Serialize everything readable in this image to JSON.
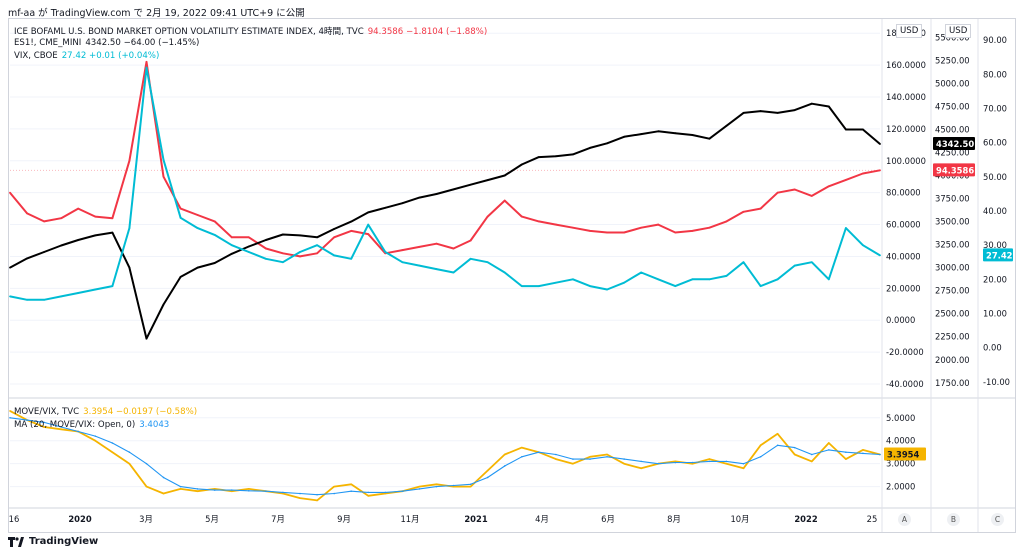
{
  "header": {
    "byline": "mf-aa が TradingView.com で 2月 19, 2022 09:41 UTC+9 に公開"
  },
  "legend_top": [
    {
      "name": "ICE BOFAML U.S. BOND MARKET OPTION VOLATILITY ESTIMATE INDEX, 4時間, TVC",
      "value": "94.3586 −1.8104 (−1.88%)",
      "color": "#f23645"
    },
    {
      "name": "ES1!, CME_MINI",
      "value": "4342.50 −64.00 (−1.45%)",
      "color": "#131722"
    },
    {
      "name": "VIX, CBOE",
      "value": "27.42 +0.01 (+0.04%)",
      "color": "#00bcd4"
    }
  ],
  "legend_bottom": [
    {
      "name": "MOVE/VIX, TVC",
      "value": "3.3954 −0.0197 (−0.58%)",
      "color": "#f5b400"
    },
    {
      "name": "MA (20, MOVE/VIX: Open, 0)",
      "value": "3.4043",
      "color": "#2196f3"
    }
  ],
  "axes": {
    "unit": "USD"
  },
  "footer": {
    "brand": "TradingView",
    "buttons": [
      "A",
      "B",
      "C"
    ]
  },
  "chart_data": [
    {
      "type": "line",
      "title": "",
      "x_ticks": [
        "16",
        "2020",
        "3月",
        "5月",
        "7月",
        "9月",
        "11月",
        "2021",
        "4月",
        "6月",
        "8月",
        "10月",
        "2022",
        "25"
      ],
      "y_axes": [
        {
          "name": "MOVE",
          "ticks": [
            -40,
            -20,
            0,
            20,
            40,
            60,
            80,
            100,
            120,
            140,
            160,
            180
          ],
          "ylim": [
            -45,
            182
          ]
        },
        {
          "name": "ES1!",
          "ticks": [
            1750,
            2000,
            2250,
            2500,
            2750,
            3000,
            3250,
            3500,
            3750,
            4000,
            4250,
            4500,
            4750,
            5000,
            5250,
            5500
          ],
          "ylim": [
            1650,
            5580
          ]
        },
        {
          "name": "VIX",
          "ticks": [
            -10,
            0,
            10,
            20,
            30,
            40,
            50,
            60,
            70,
            80,
            90
          ],
          "ylim": [
            -13,
            93
          ]
        }
      ],
      "last_labels": [
        {
          "series": "ES1!",
          "text": "4342.50",
          "color": "#000000"
        },
        {
          "series": "MOVE",
          "text": "94.3586",
          "color": "#f23645"
        },
        {
          "series": "VIX",
          "text": "27.42",
          "color": "#00bcd4"
        }
      ],
      "series": [
        {
          "name": "MOVE",
          "color": "#f23645",
          "axis": 0,
          "values": [
            80,
            67,
            62,
            64,
            70,
            65,
            64,
            100,
            162,
            90,
            70,
            66,
            62,
            52,
            52,
            45,
            42,
            40,
            42,
            52,
            56,
            54,
            42,
            44,
            46,
            48,
            45,
            50,
            65,
            75,
            65,
            62,
            60,
            58,
            56,
            55,
            55,
            58,
            60,
            55,
            56,
            58,
            62,
            68,
            70,
            80,
            82,
            78,
            84,
            88,
            92,
            94
          ]
        },
        {
          "name": "ES1!",
          "color": "#000000",
          "axis": 1,
          "values": [
            3000,
            3100,
            3170,
            3240,
            3300,
            3350,
            3380,
            3000,
            2230,
            2600,
            2900,
            3000,
            3050,
            3150,
            3230,
            3300,
            3360,
            3350,
            3330,
            3420,
            3500,
            3600,
            3650,
            3700,
            3760,
            3800,
            3850,
            3900,
            3950,
            4000,
            4120,
            4200,
            4210,
            4230,
            4300,
            4350,
            4420,
            4450,
            4480,
            4460,
            4440,
            4400,
            4540,
            4680,
            4700,
            4680,
            4710,
            4780,
            4750,
            4500,
            4500,
            4342
          ]
        },
        {
          "name": "VIX",
          "color": "#00bcd4",
          "axis": 2,
          "values": [
            15,
            14,
            14,
            15,
            16,
            17,
            18,
            35,
            82,
            55,
            38,
            35,
            33,
            30,
            28,
            26,
            25,
            28,
            30,
            27,
            26,
            36,
            28,
            25,
            24,
            23,
            22,
            26,
            25,
            22,
            18,
            18,
            19,
            20,
            18,
            17,
            19,
            22,
            20,
            18,
            20,
            20,
            21,
            25,
            18,
            20,
            24,
            25,
            20,
            35,
            30,
            27
          ]
        }
      ]
    },
    {
      "type": "line",
      "title": "",
      "y_ticks": [
        2,
        3,
        4,
        5
      ],
      "ylim": [
        1.2,
        5.6
      ],
      "last_label": {
        "text": "3.3954",
        "color": "#f5b400"
      },
      "series": [
        {
          "name": "MOVE/VIX",
          "color": "#f5b400",
          "values": [
            5.3,
            4.9,
            4.6,
            4.5,
            4.4,
            4.0,
            3.5,
            3.0,
            2.0,
            1.7,
            1.9,
            1.8,
            1.9,
            1.8,
            1.9,
            1.8,
            1.7,
            1.5,
            1.4,
            2.0,
            2.1,
            1.6,
            1.7,
            1.8,
            2.0,
            2.1,
            2.0,
            2.0,
            2.7,
            3.4,
            3.7,
            3.5,
            3.2,
            3.0,
            3.3,
            3.4,
            3.0,
            2.8,
            3.0,
            3.1,
            3.0,
            3.2,
            3.0,
            2.8,
            3.8,
            4.3,
            3.4,
            3.1,
            3.9,
            3.2,
            3.6,
            3.4
          ]
        },
        {
          "name": "MA (20, MOVE/VIX: Open, 0)",
          "color": "#2196f3",
          "values": [
            5.0,
            4.9,
            4.8,
            4.6,
            4.4,
            4.2,
            3.9,
            3.5,
            3.0,
            2.4,
            2.0,
            1.9,
            1.85,
            1.85,
            1.82,
            1.8,
            1.75,
            1.7,
            1.65,
            1.7,
            1.8,
            1.75,
            1.75,
            1.8,
            1.9,
            2.0,
            2.05,
            2.1,
            2.4,
            2.9,
            3.3,
            3.5,
            3.4,
            3.2,
            3.2,
            3.3,
            3.2,
            3.1,
            3.0,
            3.05,
            3.05,
            3.1,
            3.1,
            3.0,
            3.3,
            3.8,
            3.7,
            3.4,
            3.6,
            3.5,
            3.45,
            3.4
          ]
        }
      ]
    }
  ]
}
